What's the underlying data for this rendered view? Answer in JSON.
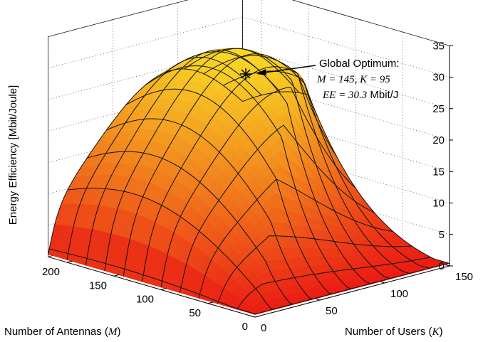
{
  "chart_data": {
    "type": "surface",
    "title": "",
    "xlabel": "Number of Antennas",
    "xlabel_var": "M",
    "ylabel": "Number of Users",
    "ylabel_var": "K",
    "zlabel": "Energy Efficiency [Mbit/Joule]",
    "x_range": [
      0,
      220
    ],
    "y_range": [
      0,
      150
    ],
    "z_range": [
      0,
      35
    ],
    "x_ticks": [
      "0",
      "50",
      "100",
      "150",
      "200"
    ],
    "y_ticks": [
      "0",
      "50",
      "100",
      "150"
    ],
    "z_ticks": [
      "0",
      "5",
      "10",
      "15",
      "20",
      "25",
      "30",
      "35"
    ],
    "grid": true,
    "colormap": "autumn (red to yellow)",
    "optimum": {
      "M": 145,
      "K": 95,
      "EE": 30.3
    },
    "annotation": {
      "line1": "Global Optimum:",
      "line2_m": "M = 145",
      "line2_k": "K = 95",
      "line3_var": "EE = 30.3",
      "line3_unit": "Mbit/J"
    },
    "mesh_M": [
      1,
      20,
      40,
      60,
      80,
      100,
      120,
      140,
      160,
      180,
      200,
      220
    ],
    "mesh_K": [
      1,
      15,
      30,
      45,
      60,
      75,
      90,
      105,
      120,
      135,
      150
    ]
  }
}
